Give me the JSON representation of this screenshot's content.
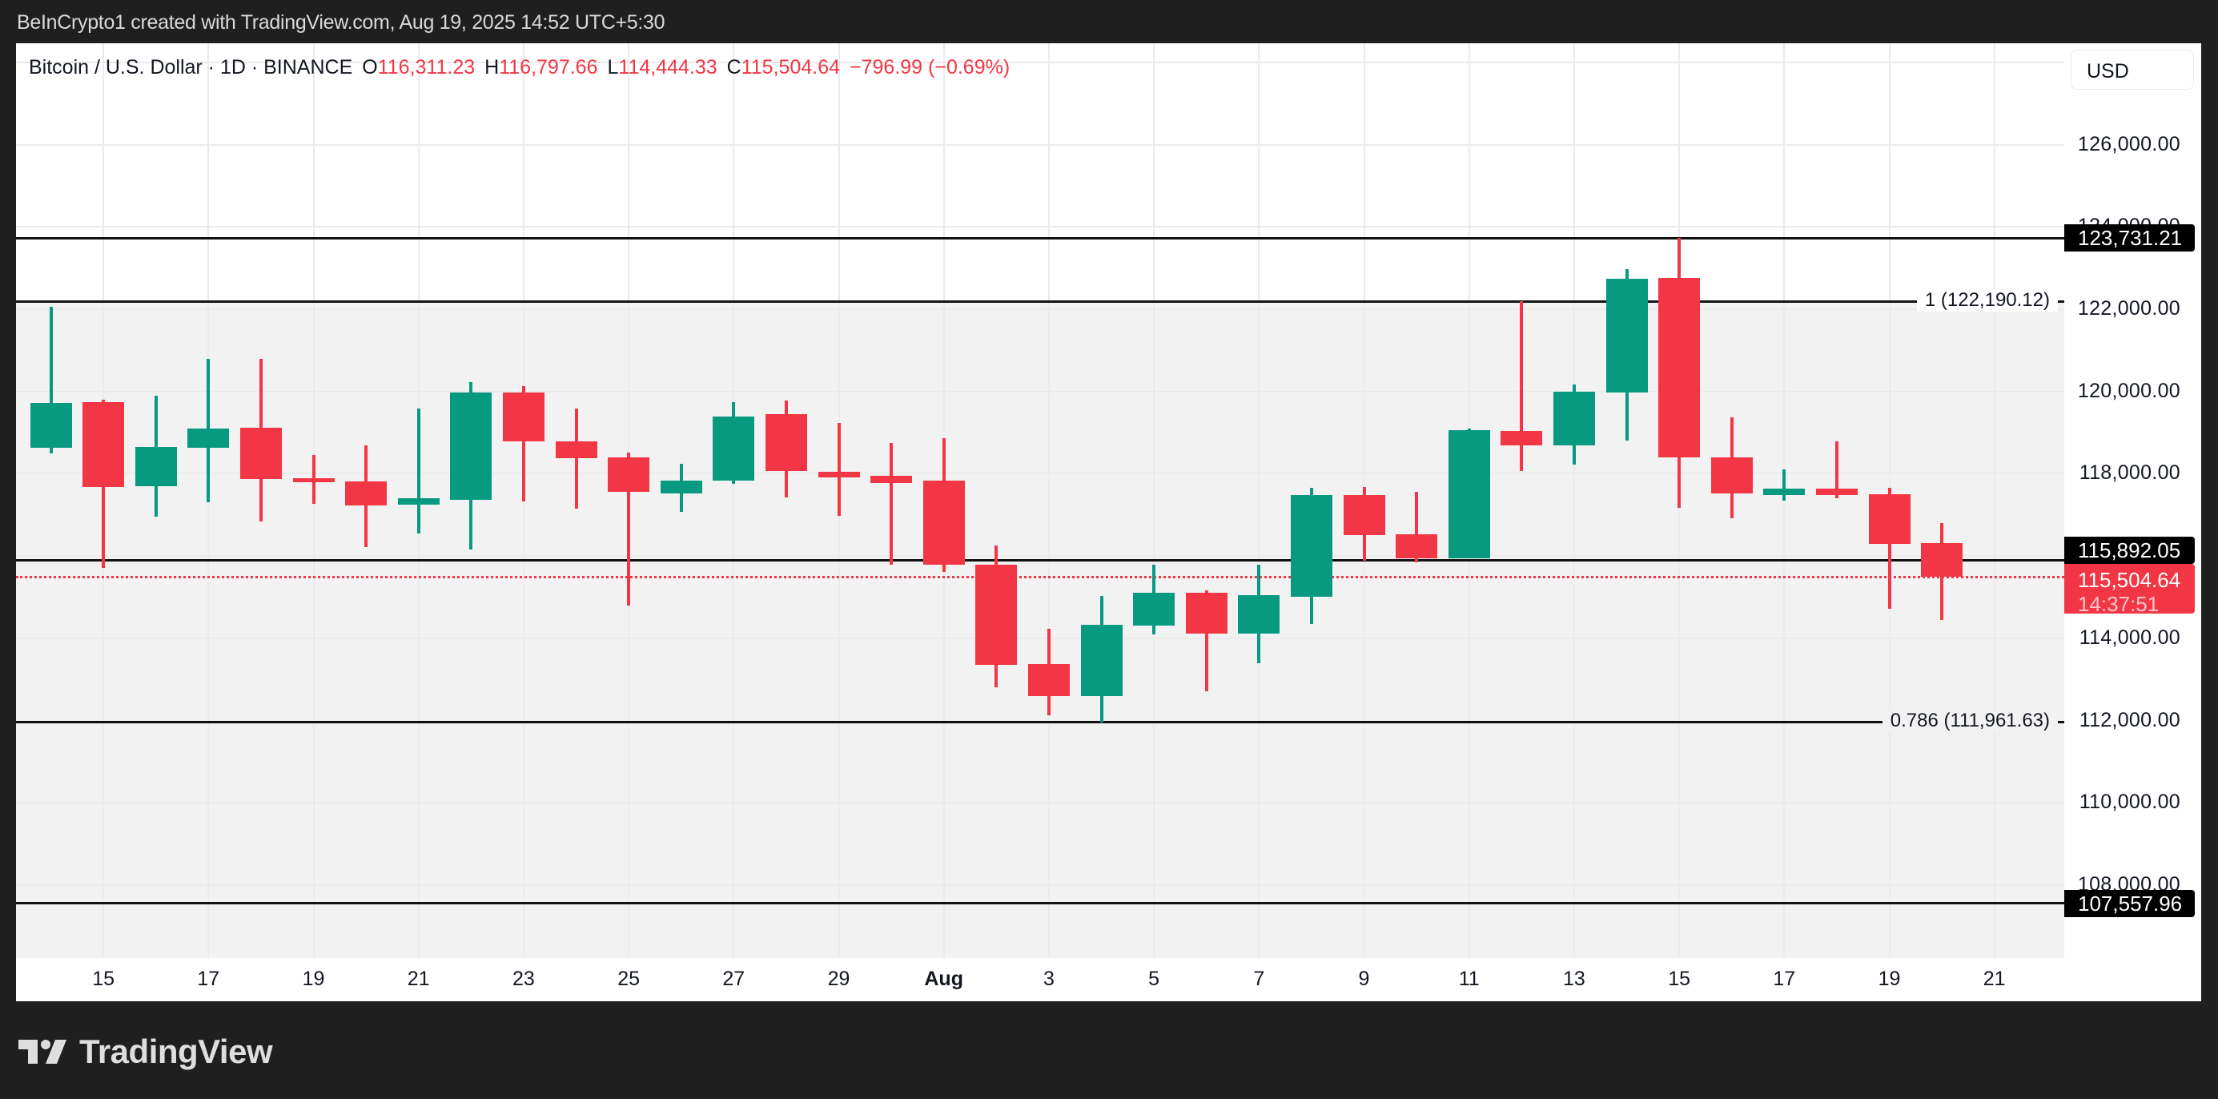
{
  "header": {
    "credit": "BeInCrypto1 created with TradingView.com, Aug 19, 2025 14:52 UTC+5:30"
  },
  "legend": {
    "symbol": "Bitcoin / U.S. Dollar · 1D · BINANCE",
    "o_label": "O",
    "o_value": "116,311.23",
    "h_label": "H",
    "h_value": "116,797.66",
    "l_label": "L",
    "l_value": "114,444.33",
    "c_label": "C",
    "c_value": "115,504.64",
    "change": "−796.99 (−0.69%)"
  },
  "price_axis": {
    "currency": "USD",
    "ticks": [
      "126,000.00",
      "124,000.00",
      "122,000.00",
      "120,000.00",
      "118,000.00",
      "116,000.00",
      "114,000.00",
      "112,000.00",
      "110,000.00",
      "108,000.00"
    ],
    "labels": {
      "upper": "123,731.21",
      "middle": "115,892.05",
      "last_price": "115,504.64",
      "countdown": "14:37:51",
      "lower": "107,557.96"
    }
  },
  "time_axis": {
    "ticks": [
      "15",
      "17",
      "19",
      "21",
      "23",
      "25",
      "27",
      "29",
      "Aug",
      "3",
      "5",
      "7",
      "9",
      "11",
      "13",
      "15",
      "17",
      "19",
      "21"
    ]
  },
  "fib_labels": {
    "level_1": "1 (122,190.12)",
    "level_0786": "0.786 (111,961.63)"
  },
  "footer": {
    "brand": "TradingView"
  },
  "colors": {
    "up": "#089981",
    "down": "#f23645",
    "level_line": "#111111",
    "fib_zone": "#f2f2f2",
    "background": "#1f1f1f"
  },
  "chart_data": {
    "type": "candlestick",
    "title": "Bitcoin / U.S. Dollar · 1D · BINANCE",
    "xlabel": "",
    "ylabel": "USD",
    "ylim": [
      106200,
      128400
    ],
    "grid": true,
    "categories": [
      "Jul 14",
      "Jul 15",
      "Jul 16",
      "Jul 17",
      "Jul 18",
      "Jul 19",
      "Jul 20",
      "Jul 21",
      "Jul 22",
      "Jul 23",
      "Jul 24",
      "Jul 25",
      "Jul 26",
      "Jul 27",
      "Jul 28",
      "Jul 29",
      "Jul 30",
      "Jul 31",
      "Aug 1",
      "Aug 2",
      "Aug 3",
      "Aug 4",
      "Aug 5",
      "Aug 6",
      "Aug 7",
      "Aug 8",
      "Aug 9",
      "Aug 10",
      "Aug 11",
      "Aug 12",
      "Aug 13",
      "Aug 14",
      "Aug 15",
      "Aug 16",
      "Aug 17",
      "Aug 18",
      "Aug 19"
    ],
    "ohlc": [
      [
        118630,
        122060,
        118500,
        119720
      ],
      [
        119740,
        119800,
        115710,
        117670
      ],
      [
        117700,
        119900,
        116950,
        118650
      ],
      [
        118630,
        120800,
        117310,
        119100
      ],
      [
        119120,
        120800,
        116830,
        117870
      ],
      [
        117890,
        118460,
        117260,
        117800
      ],
      [
        117810,
        118690,
        116220,
        117230
      ],
      [
        117240,
        119590,
        116550,
        117400
      ],
      [
        117370,
        120230,
        116150,
        119980
      ],
      [
        119980,
        120140,
        117330,
        118780
      ],
      [
        118780,
        119590,
        117150,
        118370
      ],
      [
        118390,
        118510,
        114800,
        117560
      ],
      [
        117520,
        118250,
        117070,
        117830
      ],
      [
        117830,
        119740,
        117760,
        119390
      ],
      [
        119450,
        119780,
        117420,
        118070
      ],
      [
        118040,
        119240,
        116970,
        117910
      ],
      [
        117940,
        118750,
        115790,
        117770
      ],
      [
        117830,
        118870,
        115610,
        115790
      ],
      [
        115790,
        116260,
        112810,
        113360
      ],
      [
        113370,
        114230,
        112130,
        112600
      ],
      [
        112600,
        115030,
        111960,
        114330
      ],
      [
        114310,
        115790,
        114100,
        115110
      ],
      [
        115100,
        115160,
        112720,
        114110
      ],
      [
        114110,
        115780,
        113390,
        115050
      ],
      [
        115000,
        117650,
        114340,
        117490
      ],
      [
        117490,
        117670,
        115890,
        116510
      ],
      [
        116520,
        117560,
        115850,
        115950
      ],
      [
        115940,
        119100,
        115940,
        119060
      ],
      [
        119040,
        122190,
        118070,
        118690
      ],
      [
        118690,
        120170,
        118220,
        120000
      ],
      [
        119980,
        122970,
        118810,
        122740
      ],
      [
        122760,
        123731,
        117170,
        118390
      ],
      [
        118390,
        119370,
        116910,
        117520
      ],
      [
        117490,
        118100,
        117340,
        117630
      ],
      [
        117630,
        118780,
        117400,
        117480
      ],
      [
        117510,
        117650,
        114710,
        116290
      ],
      [
        116311.23,
        116797.66,
        114444.33,
        115504.64
      ]
    ],
    "horizontal_levels": [
      {
        "price": 123731.21,
        "label": "123,731.21"
      },
      {
        "price": 122190.12,
        "label": "1 (122,190.12)",
        "fib": 1
      },
      {
        "price": 115892.05,
        "label": "115,892.05"
      },
      {
        "price": 111961.63,
        "label": "0.786 (111,961.63)",
        "fib": 0.786
      },
      {
        "price": 107557.96,
        "label": "107,557.96"
      }
    ],
    "last_price": 115504.64,
    "y_ticks": [
      126000,
      124000,
      122000,
      120000,
      118000,
      116000,
      114000,
      112000,
      110000,
      108000
    ],
    "x_ticks": [
      "15",
      "17",
      "19",
      "21",
      "23",
      "25",
      "27",
      "29",
      "Aug",
      "3",
      "5",
      "7",
      "9",
      "11",
      "13",
      "15",
      "17",
      "19",
      "21"
    ]
  }
}
